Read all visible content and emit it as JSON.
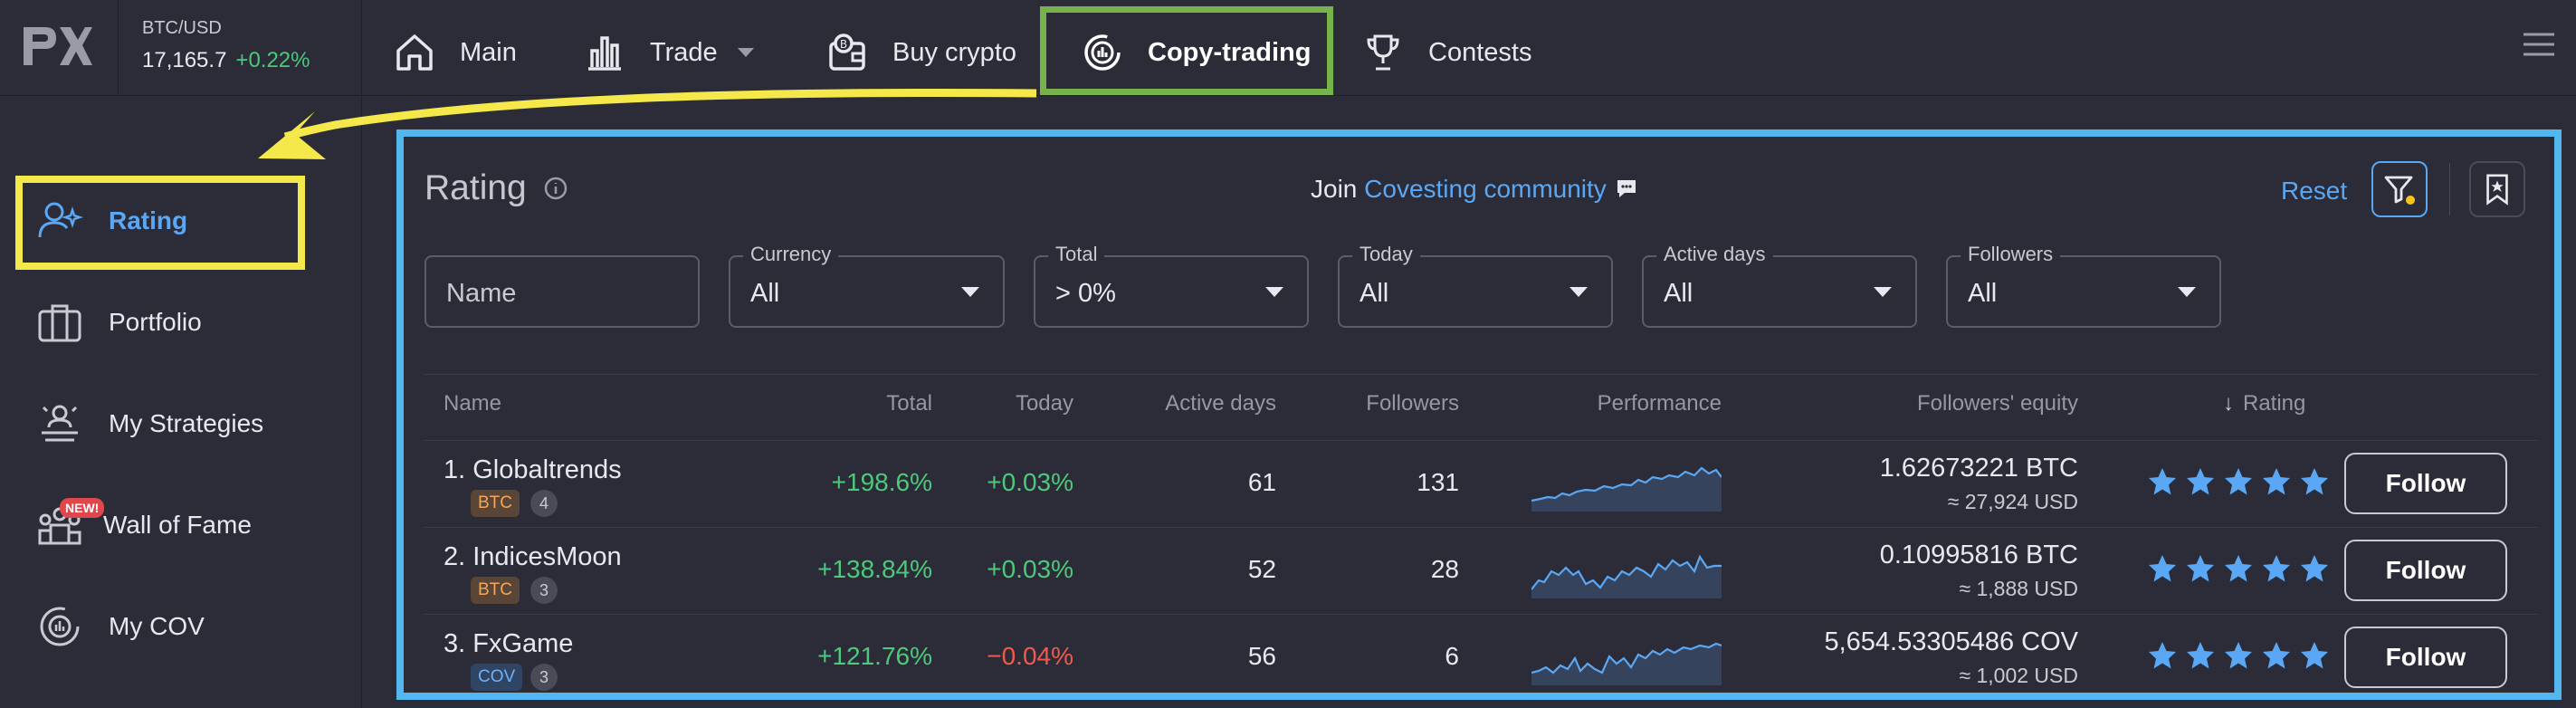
{
  "ticker": {
    "pair": "BTC/USD",
    "price": "17,165.7",
    "change": "+0.22%"
  },
  "nav": {
    "main": "Main",
    "trade": "Trade",
    "buy": "Buy crypto",
    "copy": "Copy-trading",
    "contests": "Contests"
  },
  "sidebar": {
    "items": [
      {
        "label": "Rating"
      },
      {
        "label": "Portfolio"
      },
      {
        "label": "My Strategies"
      },
      {
        "label": "Wall of Fame",
        "badge": "NEW!"
      },
      {
        "label": "My COV"
      }
    ]
  },
  "panel": {
    "title": "Rating",
    "join_prefix": "Join",
    "join_link": "Covesting community",
    "reset": "Reset"
  },
  "filters": {
    "name_placeholder": "Name",
    "currency": {
      "label": "Currency",
      "value": "All"
    },
    "total": {
      "label": "Total",
      "value": "> 0%"
    },
    "today": {
      "label": "Today",
      "value": "All"
    },
    "active_days": {
      "label": "Active days",
      "value": "All"
    },
    "followers": {
      "label": "Followers",
      "value": "All"
    }
  },
  "table": {
    "headers": {
      "name": "Name",
      "total": "Total",
      "today": "Today",
      "active_days": "Active days",
      "followers": "Followers",
      "performance": "Performance",
      "equity": "Followers' equity",
      "rating": "Rating"
    },
    "follow_label": "Follow",
    "rows": [
      {
        "name": "1. Globaltrends",
        "currency": "BTC",
        "count": "4",
        "total": "+198.6%",
        "today": "+0.03%",
        "active_days": "61",
        "followers": "131",
        "equity": "1.62673221 BTC",
        "equity_usd": "≈ 27,924 USD",
        "stars": 5
      },
      {
        "name": "2. IndicesMoon",
        "currency": "BTC",
        "count": "3",
        "total": "+138.84%",
        "today": "+0.03%",
        "active_days": "52",
        "followers": "28",
        "equity": "0.10995816 BTC",
        "equity_usd": "≈ 1,888 USD",
        "stars": 5
      },
      {
        "name": "3. FxGame",
        "currency": "COV",
        "count": "3",
        "total": "+121.76%",
        "today": "−0.04%",
        "active_days": "56",
        "followers": "6",
        "equity": "5,654.53305486 COV",
        "equity_usd": "≈ 1,002 USD",
        "stars": 5
      }
    ]
  },
  "colors": {
    "accent": "#5aa8f5",
    "positive": "#4cc97a",
    "negative": "#f05a4c",
    "highlight_yellow": "#f5e84a",
    "highlight_green": "#78b24a",
    "highlight_blue": "#52b7ee"
  }
}
